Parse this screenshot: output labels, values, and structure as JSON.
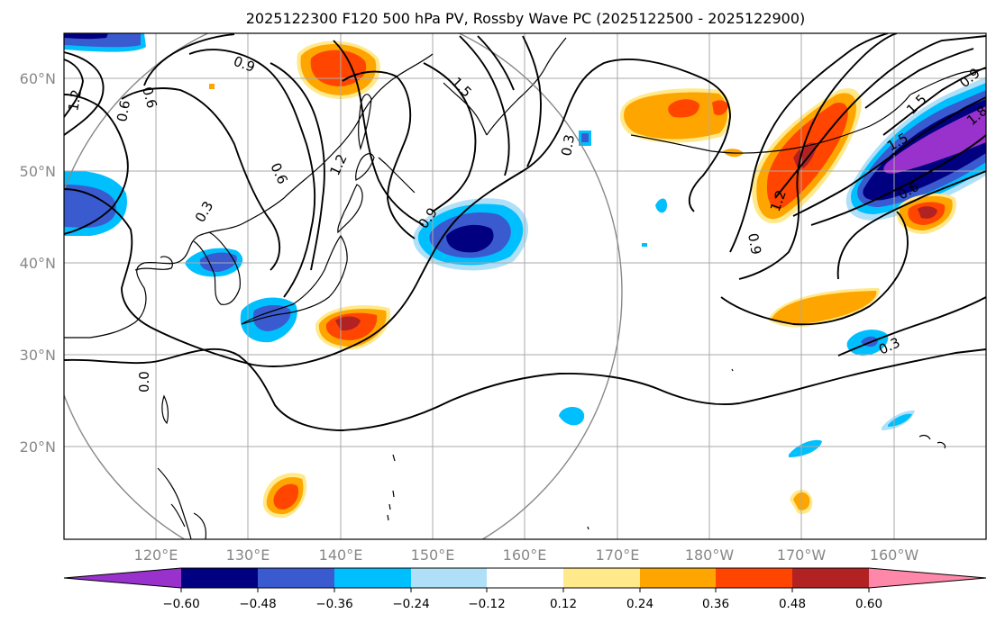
{
  "figure": {
    "title": "2025122300 F120 500 hPa PV, Rossby Wave PC (2025122500 - 2025122900)"
  },
  "axes": {
    "lat_labels": [
      "60°N",
      "50°N",
      "40°N",
      "30°N",
      "20°N"
    ],
    "lon_labels": [
      "120°E",
      "130°E",
      "140°E",
      "150°E",
      "160°E",
      "170°E",
      "180°W",
      "170°W",
      "160°W"
    ]
  },
  "colorbar": {
    "ticks": [
      "−0.60",
      "−0.48",
      "−0.36",
      "−0.24",
      "−0.12",
      "0.12",
      "0.24",
      "0.36",
      "0.48",
      "0.60"
    ],
    "colors": {
      "under": "#9932cc",
      "neg_060_048": "#000080",
      "neg_048_036": "#3a5ad0",
      "neg_036_024": "#00bfff",
      "neg_024_012": "#b0e0f8",
      "zero_band": "#ffffff",
      "pos_012_024": "#ffe98a",
      "pos_024_036": "#ffa500",
      "pos_036_048": "#ff4500",
      "pos_048_060": "#b22222",
      "over": "#ff88aa"
    }
  },
  "contour_labels": {
    "a": "0.9",
    "b": "0.6",
    "c": "1.2",
    "d": "0.6",
    "e": "0.3",
    "f": "0.6",
    "g": "1.2",
    "h": "1.5",
    "i": "0.3",
    "j": "0.9",
    "k": "1.2",
    "l": "0.9",
    "m": "0.6",
    "n": "0.3",
    "o": "0.0",
    "p": "0.9",
    "q": "1.5",
    "r": "1.5",
    "s": "1.8"
  }
}
